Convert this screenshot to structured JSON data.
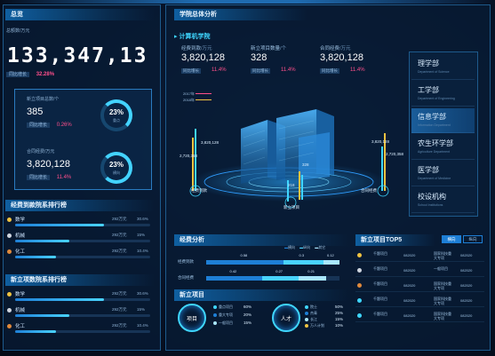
{
  "left": {
    "title": "总览",
    "total_label": "总额数",
    "total_unit": "/万元",
    "total_value": "133,347,13",
    "growth_label": "同比增长",
    "growth_value": "32.28%",
    "new_projects": {
      "label": "新立项目总数/个",
      "value": "385",
      "growth_label": "同比增长",
      "growth_value": "0.26%",
      "ring_percent": "23%",
      "ring_label": "重点"
    },
    "contract": {
      "label": "合同经费/万元",
      "value": "3,820,128",
      "growth_label": "同比增长",
      "growth_value": "11.4%",
      "ring_percent": "23%",
      "ring_label": "横向"
    },
    "rank1": {
      "title": "经费到款院系排行榜",
      "items": [
        {
          "name": "数学",
          "amount": "292万元",
          "pct": "30.6%",
          "fill": 0.66,
          "color": "#f0c341"
        },
        {
          "name": "机械",
          "amount": "292万元",
          "pct": "15%",
          "fill": 0.4,
          "color": "#cfd6e0"
        },
        {
          "name": "化工",
          "amount": "292万元",
          "pct": "10.4%",
          "fill": 0.3,
          "color": "#e08a3c"
        }
      ]
    },
    "rank2": {
      "title": "新立项数院系排行榜",
      "items": [
        {
          "name": "数学",
          "amount": "292万元",
          "pct": "30.6%",
          "fill": 0.66,
          "color": "#f0c341"
        },
        {
          "name": "机械",
          "amount": "292万元",
          "pct": "15%",
          "fill": 0.4,
          "color": "#cfd6e0"
        },
        {
          "name": "化工",
          "amount": "292万元",
          "pct": "10.4%",
          "fill": 0.3,
          "color": "#e08a3c"
        }
      ]
    }
  },
  "main": {
    "title": "学院总体分析",
    "school": "计算机学院",
    "kpis": [
      {
        "label": "经费到款",
        "unit": "/万元",
        "value": "3,820,128",
        "growth_label": "同比增长",
        "growth_value": "11.4%"
      },
      {
        "label": "新立项目数量",
        "unit": "/个",
        "value": "328",
        "growth_label": "同比增长",
        "growth_value": "11.4%"
      },
      {
        "label": "合同经费",
        "unit": "/万元",
        "value": "3,820,128",
        "growth_label": "同比增长",
        "growth_value": "11.4%"
      }
    ],
    "years": [
      "2017年",
      "2018年"
    ],
    "building_labels": [
      {
        "text": "3,820,128",
        "cls": "a"
      },
      {
        "text": "2,720,358",
        "cls": "b"
      },
      {
        "text": "经费到款",
        "cls": "c"
      },
      {
        "text": "3,820,128",
        "cls": "d"
      },
      {
        "text": "2,720,358",
        "cls": "e"
      },
      {
        "text": "合同经费",
        "cls": "f"
      },
      {
        "text": "新立项目",
        "cls": "g"
      },
      {
        "text": "328",
        "cls": "h"
      },
      {
        "text": "218",
        "cls": "i"
      }
    ],
    "departments": [
      {
        "name": "理学部",
        "en": "Department of Science",
        "active": false
      },
      {
        "name": "工学部",
        "en": "Department of Engineering",
        "active": false
      },
      {
        "name": "信息学部",
        "en": "Information Department",
        "active": true
      },
      {
        "name": "农生环学部",
        "en": "Agriculture Department",
        "active": false
      },
      {
        "name": "医学部",
        "en": "Department of Medicine",
        "active": false
      },
      {
        "name": "校设机构",
        "en": "School Institutions",
        "active": false
      }
    ],
    "funding": {
      "title": "经费分析",
      "legend": [
        "横向",
        "纵向",
        "其它"
      ],
      "rows": [
        {
          "label": "经费到款",
          "segments": [
            0.58,
            0.3,
            0.12
          ],
          "values": [
            "0.58",
            "0.3",
            "0.12"
          ]
        },
        {
          "label": "合同经费",
          "segments": [
            0.42,
            0.27,
            0.21
          ],
          "values": [
            "0.42",
            "0.27",
            "0.21"
          ]
        }
      ]
    },
    "newproj": {
      "title": "新立项目",
      "circle1": "项目",
      "circle2": "人才",
      "left_items": [
        {
          "name": "重点项目",
          "pct": "60%"
        },
        {
          "name": "重大专项",
          "pct": "20%"
        },
        {
          "name": "一般项目",
          "pct": "15%"
        }
      ],
      "right_items": [
        {
          "name": "院士",
          "pct": "50%"
        },
        {
          "name": "杰青",
          "pct": "25%"
        },
        {
          "name": "长江",
          "pct": "15%"
        },
        {
          "name": "万人计划",
          "pct": "10%"
        }
      ]
    },
    "top5": {
      "title": "新立项目TOP5",
      "tabs": [
        "横向",
        "纵向"
      ],
      "rows": [
        {
          "rank": "1",
          "name": "千题项目",
          "code": "082020",
          "type": "国家科技重大专项",
          "amount": "082020"
        },
        {
          "rank": "2",
          "name": "千题项目",
          "code": "082020",
          "type": "一般项目",
          "amount": "082020"
        },
        {
          "rank": "3",
          "name": "千题项目",
          "code": "082020",
          "type": "国家科技重大专项",
          "amount": "082020"
        },
        {
          "rank": "4",
          "name": "千题项目",
          "code": "082020",
          "type": "国家科技重大专项",
          "amount": "082020"
        },
        {
          "rank": "5",
          "name": "千题项目",
          "code": "082020",
          "type": "国家科技重大专项",
          "amount": "082020"
        }
      ]
    }
  }
}
